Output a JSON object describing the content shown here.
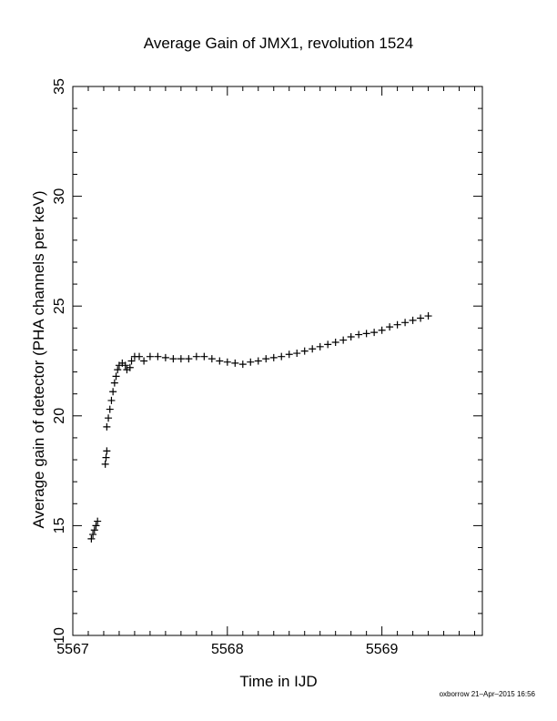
{
  "chart_data": {
    "type": "scatter",
    "title": "Average Gain of JMX1, revolution 1524",
    "xlabel": "Time in IJD",
    "ylabel": "Average gain of detector (PHA channels per keV)",
    "xlim": [
      5567.0,
      5569.65
    ],
    "ylim": [
      10,
      35
    ],
    "xticks": [
      5567,
      5568,
      5569
    ],
    "xtick_labels": [
      "5567",
      "5568",
      "5569"
    ],
    "yticks": [
      10,
      15,
      20,
      25,
      30,
      35
    ],
    "ytick_labels": [
      "10",
      "15",
      "20",
      "25",
      "30",
      "35"
    ],
    "marker": "plus",
    "grid": false,
    "series": [
      {
        "color": "#000000",
        "points": [
          [
            5567.12,
            14.4
          ],
          [
            5567.13,
            14.6
          ],
          [
            5567.14,
            14.8
          ],
          [
            5567.15,
            15.0
          ],
          [
            5567.16,
            15.2
          ],
          [
            5567.21,
            17.8
          ],
          [
            5567.215,
            18.1
          ],
          [
            5567.22,
            18.4
          ],
          [
            5567.22,
            19.5
          ],
          [
            5567.23,
            19.9
          ],
          [
            5567.24,
            20.3
          ],
          [
            5567.25,
            20.7
          ],
          [
            5567.26,
            21.1
          ],
          [
            5567.27,
            21.5
          ],
          [
            5567.28,
            21.8
          ],
          [
            5567.29,
            22.1
          ],
          [
            5567.3,
            22.3
          ],
          [
            5567.32,
            22.4
          ],
          [
            5567.34,
            22.3
          ],
          [
            5567.35,
            22.1
          ],
          [
            5567.37,
            22.2
          ],
          [
            5567.38,
            22.5
          ],
          [
            5567.4,
            22.7
          ],
          [
            5567.43,
            22.7
          ],
          [
            5567.46,
            22.5
          ],
          [
            5567.5,
            22.7
          ],
          [
            5567.55,
            22.7
          ],
          [
            5567.6,
            22.65
          ],
          [
            5567.65,
            22.6
          ],
          [
            5567.7,
            22.6
          ],
          [
            5567.75,
            22.6
          ],
          [
            5567.8,
            22.7
          ],
          [
            5567.85,
            22.7
          ],
          [
            5567.9,
            22.6
          ],
          [
            5567.95,
            22.5
          ],
          [
            5568.0,
            22.45
          ],
          [
            5568.05,
            22.4
          ],
          [
            5568.1,
            22.35
          ],
          [
            5568.15,
            22.45
          ],
          [
            5568.2,
            22.5
          ],
          [
            5568.25,
            22.6
          ],
          [
            5568.3,
            22.65
          ],
          [
            5568.35,
            22.7
          ],
          [
            5568.4,
            22.8
          ],
          [
            5568.45,
            22.85
          ],
          [
            5568.5,
            22.95
          ],
          [
            5568.55,
            23.05
          ],
          [
            5568.6,
            23.15
          ],
          [
            5568.65,
            23.25
          ],
          [
            5568.7,
            23.35
          ],
          [
            5568.75,
            23.45
          ],
          [
            5568.8,
            23.6
          ],
          [
            5568.85,
            23.7
          ],
          [
            5568.9,
            23.75
          ],
          [
            5568.95,
            23.8
          ],
          [
            5569.0,
            23.9
          ],
          [
            5569.05,
            24.05
          ],
          [
            5569.1,
            24.15
          ],
          [
            5569.15,
            24.25
          ],
          [
            5569.2,
            24.35
          ],
          [
            5569.25,
            24.45
          ],
          [
            5569.3,
            24.55
          ]
        ]
      }
    ]
  },
  "footer": {
    "credit": "oxborrow 21–Apr–2015 16:56"
  }
}
